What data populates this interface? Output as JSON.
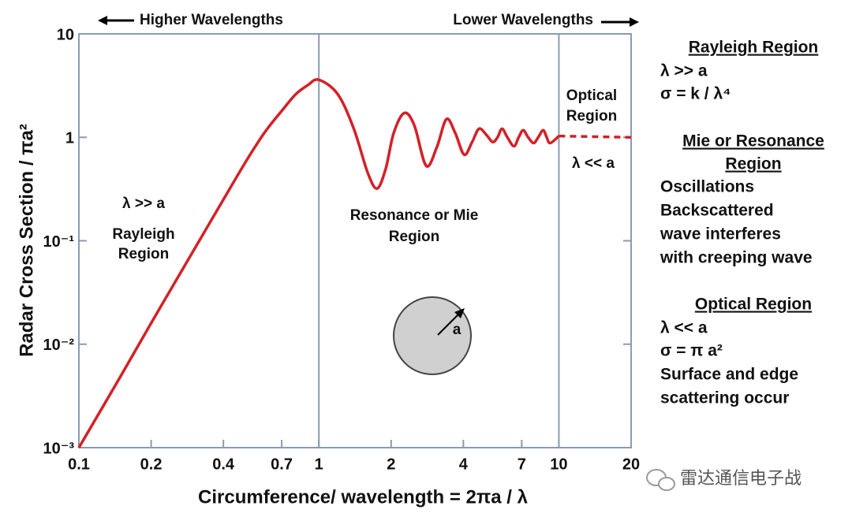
{
  "chart_data": {
    "type": "line",
    "xlabel": "Circumference/ wavelength =   2πa / λ",
    "ylabel": "Radar Cross Section / πa²",
    "xscale": "log",
    "yscale": "log",
    "xlim": [
      0.1,
      20
    ],
    "ylim": [
      0.001,
      10
    ],
    "xticks": [
      0.1,
      0.2,
      0.4,
      0.7,
      1,
      2,
      4,
      7,
      10,
      20
    ],
    "yticks": [
      {
        "value": 0.001,
        "label": "10⁻³"
      },
      {
        "value": 0.01,
        "label": "10⁻²"
      },
      {
        "value": 0.1,
        "label": "10⁻¹"
      },
      1,
      10
    ],
    "region_bounds": [
      1,
      10
    ],
    "x": [
      0.1,
      0.15,
      0.2,
      0.3,
      0.4,
      0.5,
      0.6,
      0.7,
      0.8,
      0.9,
      1,
      1.2,
      1.4,
      1.6,
      1.75,
      1.9,
      2.05,
      2.27,
      2.5,
      2.8,
      3.1,
      3.4,
      3.7,
      4.03,
      4.35,
      4.65,
      5.0,
      5.3,
      5.55,
      5.8,
      6.1,
      6.5,
      6.8,
      7.1,
      7.45,
      7.85,
      8.2,
      8.6,
      8.9,
      9.2,
      10,
      20
    ],
    "series": [
      {
        "color": "#d42027",
        "line": "solid",
        "values": [
          0.001,
          0.005,
          0.016,
          0.08,
          0.25,
          0.6,
          1.15,
          1.8,
          2.6,
          3.2,
          3.6,
          2.6,
          1.2,
          0.45,
          0.32,
          0.5,
          1.1,
          1.72,
          1.3,
          0.53,
          0.8,
          1.5,
          1.1,
          0.68,
          0.9,
          1.21,
          1.05,
          0.9,
          1.0,
          1.21,
          1.0,
          0.82,
          1.0,
          1.17,
          1.0,
          0.88,
          1.0,
          1.17,
          1.0,
          0.88,
          1.03,
          null
        ]
      },
      {
        "color": "#d42027",
        "line": "dashed",
        "values": [
          null,
          null,
          null,
          null,
          null,
          null,
          null,
          null,
          null,
          null,
          null,
          null,
          null,
          null,
          null,
          null,
          null,
          null,
          null,
          null,
          null,
          null,
          null,
          null,
          null,
          null,
          null,
          null,
          null,
          null,
          null,
          null,
          null,
          null,
          null,
          null,
          null,
          null,
          null,
          null,
          1.03,
          1.0
        ]
      }
    ],
    "annotations": [
      "Higher Wavelengths",
      "Lower Wavelengths",
      "λ >> a",
      "Rayleigh",
      "Region",
      "Resonance or Mie",
      "Region",
      "Optical",
      "Region",
      "λ << a",
      "a"
    ],
    "side_notes": [
      "Rayleigh Region",
      "λ >> a",
      "σ = k / λ⁴",
      "Mie or Resonance",
      "Region",
      "Oscillations",
      "Backscattered",
      "wave interferes",
      "with creeping wave",
      "Optical Region",
      "λ << a",
      "σ = π a²",
      "Surface and edge",
      "scattering occur"
    ],
    "watermark": "雷达通信电子战"
  }
}
